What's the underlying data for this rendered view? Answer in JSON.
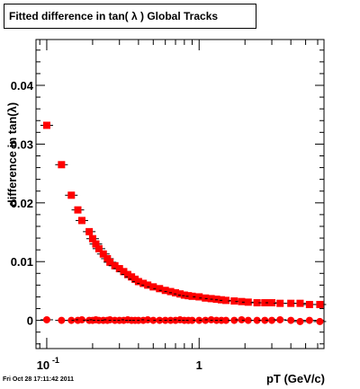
{
  "chart_data": {
    "type": "scatter",
    "title": "Fitted difference in tan( λ )  Global Tracks",
    "xlabel": "pT (GeV/c)",
    "ylabel": "difference in tan(λ)",
    "x_scale": "log",
    "xlim": [
      0.085,
      6.6
    ],
    "ylim": [
      -0.0048,
      0.0478
    ],
    "x_ticks": [
      {
        "value": 0.1,
        "label": "10",
        "exp": "-1"
      },
      {
        "value": 1,
        "label": "1"
      }
    ],
    "y_ticks": [
      {
        "value": 0,
        "label": "0"
      },
      {
        "value": 0.01,
        "label": "0.01"
      },
      {
        "value": 0.02,
        "label": "0.02"
      },
      {
        "value": 0.03,
        "label": "0.03"
      },
      {
        "value": 0.04,
        "label": "0.04"
      }
    ],
    "grid": false,
    "series": [
      {
        "marker": "square",
        "color": "#ff0000",
        "points": [
          [
            0.1,
            0.0332
          ],
          [
            0.125,
            0.0265
          ],
          [
            0.145,
            0.0213
          ],
          [
            0.16,
            0.0188
          ],
          [
            0.17,
            0.017
          ],
          [
            0.19,
            0.0151
          ],
          [
            0.2,
            0.0139
          ],
          [
            0.21,
            0.013
          ],
          [
            0.22,
            0.0122
          ],
          [
            0.235,
            0.0113
          ],
          [
            0.25,
            0.0105
          ],
          [
            0.26,
            0.0099
          ],
          [
            0.28,
            0.0093
          ],
          [
            0.3,
            0.0088
          ],
          [
            0.32,
            0.0083
          ],
          [
            0.34,
            0.0078
          ],
          [
            0.36,
            0.0074
          ],
          [
            0.38,
            0.007
          ],
          [
            0.4,
            0.0066
          ],
          [
            0.43,
            0.0063
          ],
          [
            0.46,
            0.006
          ],
          [
            0.5,
            0.0057
          ],
          [
            0.55,
            0.0054
          ],
          [
            0.6,
            0.0051
          ],
          [
            0.65,
            0.0049
          ],
          [
            0.7,
            0.0047
          ],
          [
            0.75,
            0.0045
          ],
          [
            0.8,
            0.0043
          ],
          [
            0.85,
            0.0042
          ],
          [
            0.9,
            0.0041
          ],
          [
            1.0,
            0.004
          ],
          [
            1.1,
            0.0038
          ],
          [
            1.2,
            0.0037
          ],
          [
            1.3,
            0.0036
          ],
          [
            1.4,
            0.0035
          ],
          [
            1.5,
            0.0034
          ],
          [
            1.7,
            0.0033
          ],
          [
            1.9,
            0.0032
          ],
          [
            2.1,
            0.0031
          ],
          [
            2.4,
            0.003
          ],
          [
            2.7,
            0.003
          ],
          [
            3.0,
            0.003
          ],
          [
            3.4,
            0.0029
          ],
          [
            4.0,
            0.0029
          ],
          [
            4.6,
            0.0029
          ],
          [
            5.3,
            0.0027
          ],
          [
            6.2,
            0.0027
          ]
        ]
      },
      {
        "marker": "circle",
        "color": "#ff0000",
        "points": [
          [
            0.1,
            0.0001
          ],
          [
            0.125,
            0.0
          ],
          [
            0.145,
            0.0
          ],
          [
            0.16,
            0.0
          ],
          [
            0.17,
            0.0001
          ],
          [
            0.19,
            0.0
          ],
          [
            0.2,
            0.0
          ],
          [
            0.21,
            0.0001
          ],
          [
            0.22,
            0.0
          ],
          [
            0.235,
            0.0
          ],
          [
            0.25,
            0.0
          ],
          [
            0.26,
            0.0001
          ],
          [
            0.28,
            0.0
          ],
          [
            0.3,
            0.0
          ],
          [
            0.32,
            0.0
          ],
          [
            0.34,
            0.0001
          ],
          [
            0.36,
            0.0
          ],
          [
            0.38,
            0.0
          ],
          [
            0.4,
            0.0
          ],
          [
            0.43,
            0.0
          ],
          [
            0.46,
            0.0001
          ],
          [
            0.5,
            0.0
          ],
          [
            0.55,
            0.0
          ],
          [
            0.6,
            0.0
          ],
          [
            0.65,
            0.0
          ],
          [
            0.7,
            0.0
          ],
          [
            0.75,
            0.0001
          ],
          [
            0.8,
            0.0
          ],
          [
            0.85,
            0.0
          ],
          [
            0.9,
            0.0
          ],
          [
            1.0,
            0.0
          ],
          [
            1.1,
            0.0
          ],
          [
            1.2,
            0.0001
          ],
          [
            1.3,
            0.0
          ],
          [
            1.4,
            0.0
          ],
          [
            1.5,
            0.0
          ],
          [
            1.7,
            0.0
          ],
          [
            1.9,
            0.0001
          ],
          [
            2.1,
            0.0
          ],
          [
            2.4,
            0.0
          ],
          [
            2.7,
            0.0
          ],
          [
            3.0,
            0.0
          ],
          [
            3.4,
            0.0001
          ],
          [
            4.0,
            0.0
          ],
          [
            4.6,
            -0.0002
          ],
          [
            5.3,
            0.0
          ],
          [
            6.2,
            -0.0002
          ]
        ]
      }
    ]
  },
  "footer": {
    "timestamp": "Fri Oct 28 17:11:42 2011"
  }
}
